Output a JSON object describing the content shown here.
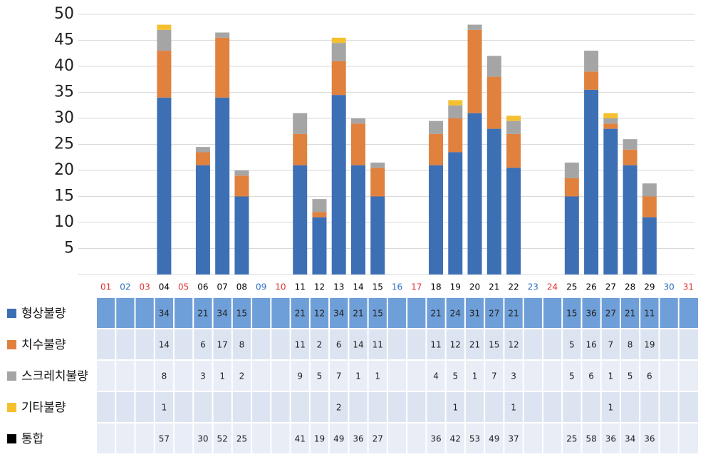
{
  "chart_data": {
    "type": "stacked_bar",
    "categories": [
      "01",
      "02",
      "03",
      "04",
      "05",
      "06",
      "07",
      "08",
      "09",
      "10",
      "11",
      "12",
      "13",
      "14",
      "15",
      "16",
      "17",
      "18",
      "19",
      "20",
      "21",
      "22",
      "23",
      "24",
      "25",
      "26",
      "27",
      "28",
      "29",
      "30",
      "31"
    ],
    "category_colors": [
      "#e03030",
      "#2a6fc0",
      "#e03030",
      "#000000",
      "#e03030",
      "#000000",
      "#000000",
      "#000000",
      "#2a6fc0",
      "#e03030",
      "#000000",
      "#000000",
      "#000000",
      "#000000",
      "#000000",
      "#2a6fc0",
      "#e03030",
      "#000000",
      "#000000",
      "#000000",
      "#000000",
      "#000000",
      "#2a6fc0",
      "#e03030",
      "#000000",
      "#000000",
      "#000000",
      "#000000",
      "#000000",
      "#2a6fc0",
      "#e03030"
    ],
    "series": [
      {
        "name": "형상불량",
        "color": "#3d6fb5",
        "values": [
          null,
          null,
          null,
          34,
          null,
          21,
          34,
          15,
          null,
          null,
          21,
          11,
          34.5,
          21,
          15,
          null,
          null,
          21,
          23.5,
          31,
          28,
          20.5,
          null,
          null,
          15,
          35.5,
          28,
          21,
          11,
          null,
          null
        ]
      },
      {
        "name": "치수불량",
        "color": "#e0813e",
        "values": [
          null,
          null,
          null,
          9,
          null,
          2.5,
          11.5,
          4,
          null,
          null,
          6,
          1,
          6.5,
          8,
          5.5,
          null,
          null,
          6,
          6.5,
          16,
          10,
          6.5,
          null,
          null,
          3.5,
          3.5,
          1,
          3,
          4,
          null,
          null
        ]
      },
      {
        "name": "스크레치불량",
        "color": "#a5a5a5",
        "values": [
          null,
          null,
          null,
          4,
          null,
          1,
          1,
          1,
          null,
          null,
          4,
          2.5,
          3.5,
          1,
          1,
          null,
          null,
          2.5,
          2.5,
          1,
          4,
          2.5,
          null,
          null,
          3,
          4,
          1,
          2,
          2.5,
          null,
          null
        ]
      },
      {
        "name": "기타불량",
        "color": "#f5c030",
        "values": [
          null,
          null,
          null,
          1,
          null,
          null,
          null,
          null,
          null,
          null,
          null,
          null,
          1,
          null,
          null,
          null,
          null,
          null,
          1,
          null,
          null,
          1,
          null,
          null,
          null,
          null,
          1,
          null,
          null,
          null,
          null
        ]
      }
    ],
    "ylim": [
      0,
      50
    ],
    "yticks": [
      5,
      10,
      15,
      20,
      25,
      30,
      35,
      40,
      45,
      50
    ],
    "grid": true
  },
  "table": {
    "total_label": "통합",
    "total_color": "#000000",
    "rows": [
      [
        null,
        null,
        null,
        34,
        null,
        21,
        34,
        15,
        null,
        null,
        21,
        12,
        34,
        21,
        15,
        null,
        null,
        21,
        24,
        31,
        27,
        21,
        null,
        null,
        15,
        36,
        27,
        21,
        11,
        null,
        null
      ],
      [
        null,
        null,
        null,
        14,
        null,
        6,
        17,
        8,
        null,
        null,
        11,
        2,
        6,
        14,
        11,
        null,
        null,
        11,
        12,
        21,
        15,
        12,
        null,
        null,
        5,
        16,
        7,
        8,
        19,
        null,
        null
      ],
      [
        null,
        null,
        null,
        8,
        null,
        3,
        1,
        2,
        null,
        null,
        9,
        5,
        7,
        1,
        1,
        null,
        null,
        4,
        5,
        1,
        7,
        3,
        null,
        null,
        5,
        6,
        1,
        5,
        6,
        null,
        null
      ],
      [
        null,
        null,
        null,
        1,
        null,
        null,
        null,
        null,
        null,
        null,
        null,
        null,
        2,
        null,
        null,
        null,
        null,
        null,
        1,
        null,
        null,
        1,
        null,
        null,
        null,
        null,
        1,
        null,
        null,
        null,
        null
      ],
      [
        null,
        null,
        null,
        57,
        null,
        30,
        52,
        25,
        null,
        null,
        41,
        19,
        49,
        36,
        27,
        null,
        null,
        36,
        42,
        53,
        49,
        37,
        null,
        null,
        25,
        58,
        36,
        34,
        36,
        null,
        null
      ]
    ]
  }
}
